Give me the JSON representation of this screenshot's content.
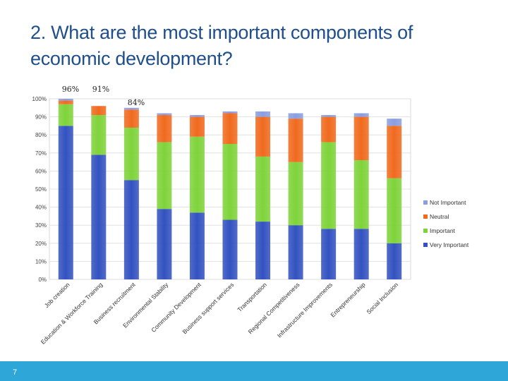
{
  "slide": {
    "title_line1": "2. What are the most important components of",
    "title_line2": "economic development?",
    "number": "7"
  },
  "colors": {
    "very_important": "#3352c0",
    "important": "#7fd33a",
    "neutral": "#f06a1e",
    "not_important": "#8a9ee0"
  },
  "chart_data": {
    "type": "bar",
    "stacked": true,
    "ylim": [
      0,
      100
    ],
    "yticks": [
      "0%",
      "10%",
      "20%",
      "30%",
      "40%",
      "50%",
      "60%",
      "70%",
      "80%",
      "90%",
      "100%"
    ],
    "grid": true,
    "legend": "right",
    "categories": [
      "Job creation",
      "Education & Workforce Training",
      "Business recruitment",
      "Environmental Stability",
      "Community Development",
      "Business support services",
      "Transportation",
      "Regional Competitiveness",
      "Infrastructure Improvements",
      "Entrepreneurship",
      "Social Inclusion"
    ],
    "series": [
      {
        "name": "Very Important",
        "values": [
          85,
          69,
          55,
          39,
          37,
          33,
          32,
          30,
          28,
          28,
          20
        ]
      },
      {
        "name": "Important",
        "values": [
          12,
          22,
          29,
          37,
          42,
          42,
          36,
          35,
          48,
          38,
          36
        ]
      },
      {
        "name": "Neutral",
        "values": [
          2,
          5,
          10,
          15,
          11,
          17,
          22,
          24,
          14,
          24,
          29
        ]
      },
      {
        "name": "Not Important",
        "values": [
          1,
          0,
          1,
          1,
          1,
          1,
          3,
          3,
          1,
          2,
          4
        ]
      }
    ],
    "annotations": [
      "96%",
      "91%",
      "84%"
    ]
  }
}
